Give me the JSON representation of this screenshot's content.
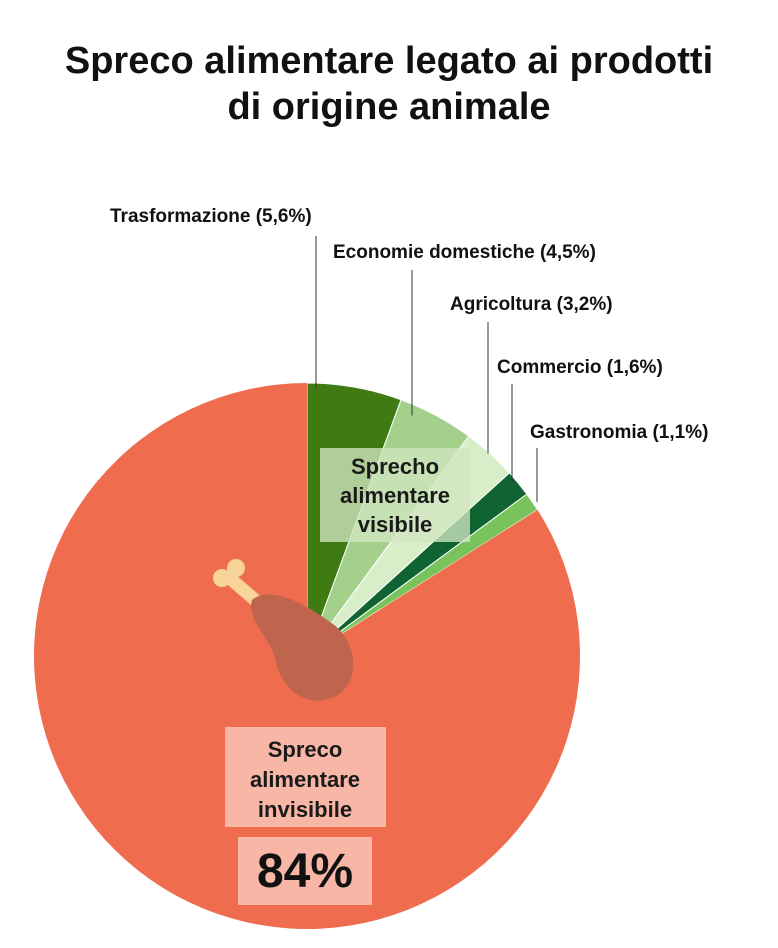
{
  "title_lines": [
    "Spreco alimentare legato ai prodotti",
    "di origine animale"
  ],
  "chart_data": {
    "type": "pie",
    "title": "Spreco alimentare legato ai prodotti di origine animale",
    "slices": [
      {
        "label": "Trasformazione (5,6%)",
        "value": 5.6,
        "color": "#3f7a12"
      },
      {
        "label": "Economie domestiche (4,5%)",
        "value": 4.5,
        "color": "#a3d08a"
      },
      {
        "label": "Agricoltura (3,2%)",
        "value": 3.2,
        "color": "#d8eec9"
      },
      {
        "label": "Commercio (1,6%)",
        "value": 1.6,
        "color": "#0f6432"
      },
      {
        "label": "Gastronomia (1,1%)",
        "value": 1.1,
        "color": "#79c35c"
      },
      {
        "label": "Spreco alimentare invisibile",
        "value": 84,
        "color": "#ef6c4f"
      }
    ],
    "group_labels": {
      "visible": [
        "Sprecho",
        "alimentare",
        "visibile"
      ],
      "invisible": [
        "Spreco",
        "alimentare",
        "invisibile"
      ],
      "invisible_value": "84%"
    },
    "colors": {
      "invisible_box": "#f7b6a6",
      "visible_box": "#cfe6c0",
      "drumstick_meat": "#c0654d",
      "drumstick_bone": "#f6d49a"
    },
    "icon": "drumstick-icon"
  }
}
